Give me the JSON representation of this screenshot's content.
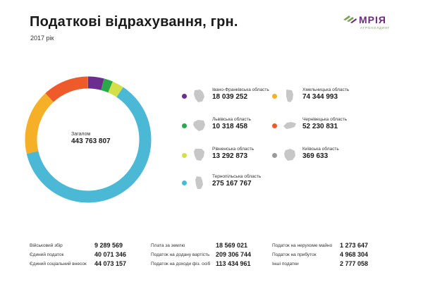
{
  "header": {
    "title": "Податкові відрахування, грн.",
    "subtitle": "2017 рік"
  },
  "logo": {
    "name": "МРІЯ",
    "tagline": "агрохолдинг"
  },
  "chart_data": {
    "type": "pie",
    "center_label": "Загалом",
    "total": "443 763 807",
    "series": [
      {
        "name": "Івано-Франківська область",
        "value": 18039252,
        "display": "18 039 252",
        "color": "#6b2d8f"
      },
      {
        "name": "Львівська область",
        "value": 10318458,
        "display": "10 318 458",
        "color": "#2aa84a"
      },
      {
        "name": "Рівненська область",
        "value": 13292873,
        "display": "13 292 873",
        "color": "#d4e04a"
      },
      {
        "name": "Тернопільська область",
        "value": 275167767,
        "display": "275 167 767",
        "color": "#4bb8d6"
      },
      {
        "name": "Хмельницька область",
        "value": 74344993,
        "display": "74 344 993",
        "color": "#f5b027"
      },
      {
        "name": "Чернівецька область",
        "value": 52230831,
        "display": "52 230 831",
        "color": "#ee5a2a"
      },
      {
        "name": "Київська область",
        "value": 369633,
        "display": "369 633",
        "color": "#9a9a9a"
      }
    ]
  },
  "taxes": [
    {
      "label": "Військовий збір",
      "value": "9 289 569"
    },
    {
      "label": "Єдиний податок",
      "value": "40 071 346"
    },
    {
      "label": "Єдиний соціальний внесок",
      "value": "44 073 157"
    },
    {
      "label": "Плата за землю",
      "value": "18 569 021"
    },
    {
      "label": "Податок на додану вартість",
      "value": "209 306 744"
    },
    {
      "label": "Податок на доходи фіз. осіб",
      "value": "113 434 961"
    },
    {
      "label": "Податок на нерухоме майно",
      "value": "1 273 647"
    },
    {
      "label": "Податок на прибуток",
      "value": "4 968 304"
    },
    {
      "label": "Інші податки",
      "value": "2 777 058"
    }
  ]
}
